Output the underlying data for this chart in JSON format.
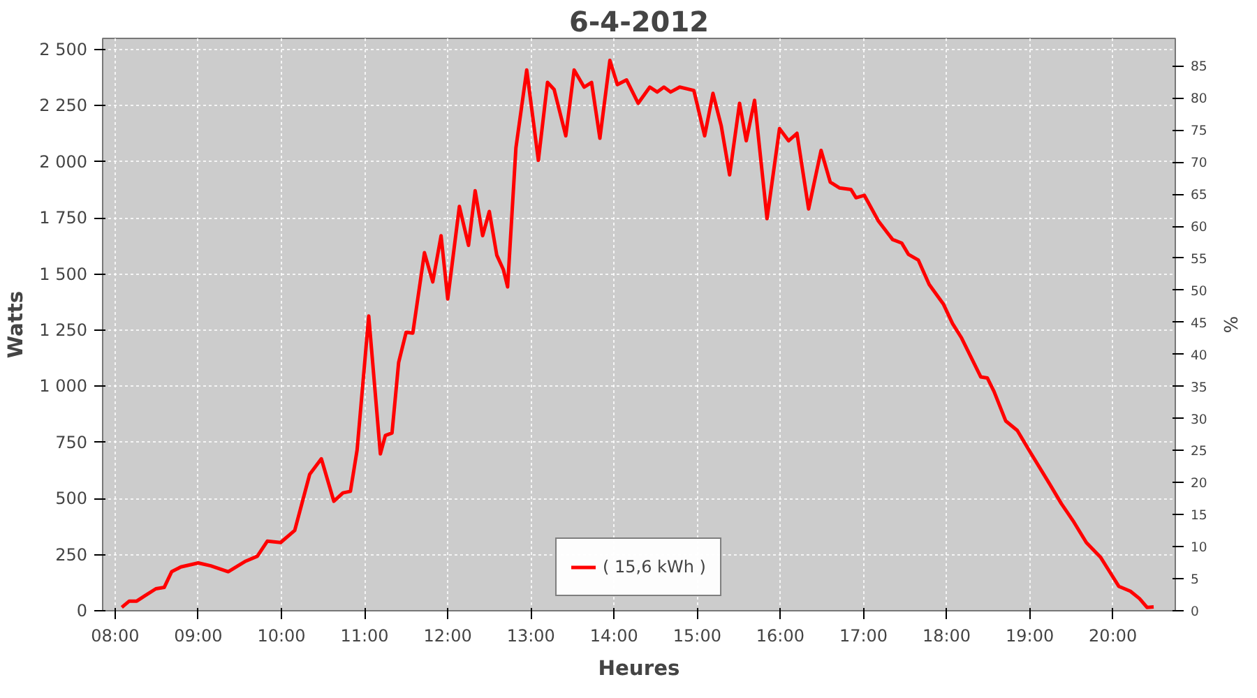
{
  "chart_data": {
    "type": "line",
    "title": "6-4-2012",
    "xlabel": "Heures",
    "ylabel": "Watts",
    "y2label": "%",
    "x": [
      8.08,
      8.17,
      8.26,
      8.35,
      8.49,
      8.59,
      8.68,
      8.79,
      9.0,
      9.15,
      9.36,
      9.57,
      9.71,
      9.83,
      9.99,
      10.16,
      10.34,
      10.48,
      10.63,
      10.74,
      10.83,
      10.91,
      11.05,
      11.19,
      11.25,
      11.33,
      11.41,
      11.5,
      11.58,
      11.72,
      11.82,
      11.92,
      12.0,
      12.14,
      12.25,
      12.33,
      12.42,
      12.5,
      12.59,
      12.67,
      12.72,
      12.82,
      12.95,
      13.09,
      13.2,
      13.28,
      13.42,
      13.52,
      13.64,
      13.73,
      13.83,
      13.95,
      14.04,
      14.15,
      14.29,
      14.43,
      14.52,
      14.6,
      14.68,
      14.79,
      14.96,
      15.09,
      15.19,
      15.29,
      15.39,
      15.51,
      15.59,
      15.69,
      15.84,
      15.99,
      16.1,
      16.2,
      16.34,
      16.49,
      16.6,
      16.71,
      16.85,
      16.91,
      17.01,
      17.18,
      17.35,
      17.46,
      17.54,
      17.66,
      17.79,
      17.96,
      18.07,
      18.18,
      18.41,
      18.49,
      18.57,
      18.71,
      18.85,
      18.99,
      19.24,
      19.38,
      19.52,
      19.68,
      19.85,
      19.96,
      20.07,
      20.21,
      20.32,
      20.41,
      20.49
    ],
    "series": [
      {
        "name": "( 15,6 kWh )",
        "color": "#ff0000",
        "values": [
          15,
          43,
          43,
          65,
          98,
          104,
          174,
          195,
          213,
          200,
          174,
          221,
          243,
          310,
          304,
          358,
          608,
          677,
          488,
          525,
          532,
          716,
          1313,
          699,
          781,
          792,
          1107,
          1241,
          1237,
          1595,
          1465,
          1671,
          1389,
          1801,
          1628,
          1871,
          1671,
          1779,
          1584,
          1519,
          1443,
          2062,
          2409,
          2007,
          2354,
          2322,
          2116,
          2409,
          2333,
          2354,
          2105,
          2452,
          2344,
          2365,
          2261,
          2333,
          2311,
          2333,
          2311,
          2333,
          2318,
          2116,
          2305,
          2159,
          1942,
          2261,
          2094,
          2274,
          1747,
          2148,
          2094,
          2127,
          1790,
          2051,
          1910,
          1884,
          1877,
          1840,
          1851,
          1736,
          1654,
          1638,
          1588,
          1562,
          1454,
          1367,
          1280,
          1215,
          1042,
          1037,
          977,
          846,
          803,
          716,
          564,
          477,
          401,
          304,
          239,
          174,
          109,
          87,
          54,
          15,
          17
        ]
      }
    ],
    "xlim": [
      7.85,
      20.75
    ],
    "xticks": [
      {
        "value": 8,
        "label": "08:00"
      },
      {
        "value": 9,
        "label": "09:00"
      },
      {
        "value": 10,
        "label": "10:00"
      },
      {
        "value": 11,
        "label": "11:00"
      },
      {
        "value": 12,
        "label": "12:00"
      },
      {
        "value": 13,
        "label": "13:00"
      },
      {
        "value": 14,
        "label": "14:00"
      },
      {
        "value": 15,
        "label": "15:00"
      },
      {
        "value": 16,
        "label": "16:00"
      },
      {
        "value": 17,
        "label": "17:00"
      },
      {
        "value": 18,
        "label": "18:00"
      },
      {
        "value": 19,
        "label": "19:00"
      },
      {
        "value": 20,
        "label": "20:00"
      }
    ],
    "ylim": [
      0,
      2550
    ],
    "yticks": [
      0,
      250,
      500,
      750,
      {
        "value": 1000,
        "label": "1 000"
      },
      {
        "value": 1250,
        "label": "1 250"
      },
      {
        "value": 1500,
        "label": "1 500"
      },
      {
        "value": 1750,
        "label": "1 750"
      },
      {
        "value": 2000,
        "label": "2 000"
      },
      {
        "value": 2250,
        "label": "2 250"
      },
      {
        "value": 2500,
        "label": "2 500"
      }
    ],
    "y2lim": [
      0,
      89.3
    ],
    "y2ticks": [
      0,
      5,
      10,
      15,
      20,
      25,
      30,
      35,
      40,
      45,
      50,
      55,
      60,
      65,
      70,
      75,
      80,
      85
    ],
    "grid": true,
    "legend": "bottom",
    "marker": "none",
    "line_style": "solid"
  }
}
